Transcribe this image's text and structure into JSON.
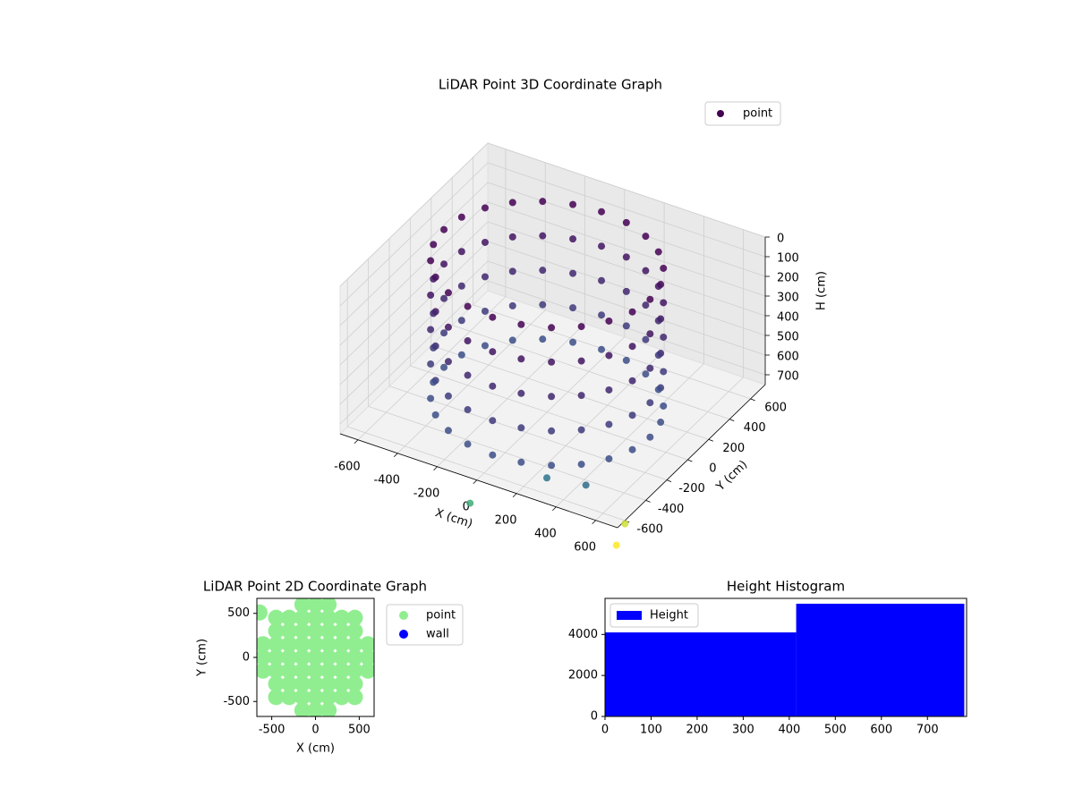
{
  "chart_data": [
    {
      "type": "scatter3d",
      "title": "LiDAR Point 3D Coordinate Graph",
      "xlabel": "X (cm)",
      "ylabel": "Y (cm)",
      "zlabel": "H (cm)",
      "series": [
        {
          "name": "point",
          "colormap": "viridis",
          "x": [
            520,
            502,
            450,
            368,
            260,
            135,
            0,
            -135,
            -260,
            -368,
            -450,
            -502,
            -520,
            -502,
            -450,
            -368,
            -260,
            -135,
            0,
            135,
            260,
            368,
            450,
            502,
            520,
            502,
            450,
            368,
            260,
            135,
            0,
            -135,
            -260,
            -368,
            -450,
            -502,
            -520,
            -502,
            -450,
            -368,
            -260,
            -135,
            0,
            135,
            260,
            368,
            450,
            502,
            520,
            502,
            450,
            368,
            260,
            135,
            0,
            -135,
            -260,
            -368,
            -450,
            -502,
            -520,
            -502,
            -450,
            -368,
            -260,
            -135,
            0,
            135,
            260,
            368,
            450,
            502,
            520,
            502,
            450,
            368,
            260,
            135,
            0,
            -135,
            -260,
            -368,
            -450,
            -502,
            -520,
            -502,
            -450,
            -368,
            -260,
            -135,
            0,
            135,
            260,
            368,
            450,
            502,
            520,
            502,
            450,
            368,
            260,
            135,
            0,
            -135,
            -260,
            -368,
            -450,
            -502,
            -520,
            -502,
            -450,
            -368,
            -260,
            -135,
            0,
            135,
            260,
            368,
            450,
            502,
            450,
            200,
            700,
            -50,
            720
          ],
          "y": [
            0,
            135,
            260,
            368,
            450,
            502,
            520,
            502,
            450,
            368,
            260,
            135,
            0,
            -135,
            -260,
            -368,
            -450,
            -502,
            -520,
            -502,
            -450,
            -368,
            -260,
            -135,
            0,
            135,
            260,
            368,
            450,
            502,
            520,
            502,
            450,
            368,
            260,
            135,
            0,
            -135,
            -260,
            -368,
            -450,
            -502,
            -520,
            -502,
            -450,
            -368,
            -260,
            -135,
            0,
            135,
            260,
            368,
            450,
            502,
            520,
            502,
            450,
            368,
            260,
            135,
            0,
            -135,
            -260,
            -368,
            -450,
            -502,
            -520,
            -502,
            -450,
            -368,
            -260,
            -135,
            0,
            135,
            260,
            368,
            450,
            502,
            520,
            502,
            450,
            368,
            260,
            135,
            0,
            -135,
            -260,
            -368,
            -450,
            -502,
            -520,
            -502,
            -450,
            -368,
            -260,
            -135,
            0,
            135,
            260,
            368,
            450,
            502,
            520,
            502,
            450,
            368,
            260,
            135,
            0,
            -135,
            -260,
            -368,
            -450,
            -502,
            -520,
            -502,
            -450,
            -368,
            -260,
            -135,
            -480,
            -380,
            -580,
            -640,
            -700
          ],
          "z": [
            0,
            0,
            0,
            0,
            0,
            0,
            0,
            0,
            0,
            0,
            0,
            0,
            0,
            0,
            0,
            0,
            0,
            0,
            0,
            0,
            0,
            0,
            0,
            0,
            175,
            175,
            175,
            175,
            175,
            175,
            175,
            175,
            175,
            175,
            175,
            175,
            175,
            175,
            175,
            175,
            175,
            175,
            175,
            175,
            175,
            175,
            175,
            175,
            350,
            350,
            350,
            350,
            350,
            350,
            350,
            350,
            350,
            350,
            350,
            350,
            350,
            350,
            350,
            350,
            350,
            350,
            350,
            350,
            350,
            350,
            350,
            350,
            525,
            525,
            525,
            525,
            525,
            525,
            525,
            525,
            525,
            525,
            525,
            525,
            525,
            525,
            525,
            525,
            525,
            525,
            525,
            525,
            525,
            525,
            525,
            525,
            700,
            700,
            700,
            700,
            700,
            700,
            700,
            700,
            700,
            700,
            700,
            700,
            700,
            700,
            700,
            700,
            700,
            700,
            700,
            700,
            700,
            700,
            700,
            700,
            720,
            820,
            780,
            900,
            820
          ]
        }
      ],
      "xlim": [
        -690,
        710
      ],
      "ylim": [
        -670,
        740
      ],
      "zlim": [
        750,
        0
      ],
      "xticks": [
        -600,
        -400,
        -200,
        0,
        200,
        400,
        600
      ],
      "yticks": [
        -600,
        -400,
        -200,
        0,
        200,
        400,
        600
      ],
      "zticks": [
        0,
        100,
        200,
        300,
        400,
        500,
        600,
        700
      ],
      "grid": true,
      "legend": "upper right"
    },
    {
      "type": "scatter",
      "title": "LiDAR Point 2D Coordinate Graph",
      "xlabel": "X (cm)",
      "ylabel": "Y (cm)",
      "series": [
        {
          "name": "point",
          "color": "#90ee90",
          "x": [
            -600,
            -600,
            -600,
            -450,
            -450,
            -450,
            -450,
            -450,
            -450,
            -450,
            -300,
            -300,
            -300,
            -300,
            -300,
            -300,
            -300,
            -150,
            -150,
            -150,
            -150,
            -150,
            -150,
            -150,
            -150,
            -150,
            0,
            0,
            0,
            0,
            0,
            0,
            0,
            0,
            0,
            150,
            150,
            150,
            150,
            150,
            150,
            150,
            150,
            150,
            300,
            300,
            300,
            300,
            300,
            300,
            300,
            450,
            450,
            450,
            450,
            450,
            450,
            450,
            600,
            600,
            600,
            -640
          ],
          "y": [
            -150,
            0,
            150,
            -450,
            -300,
            -150,
            0,
            150,
            300,
            450,
            -450,
            -300,
            -150,
            0,
            150,
            300,
            450,
            -600,
            -450,
            -300,
            -150,
            0,
            150,
            300,
            450,
            600,
            -600,
            -450,
            -300,
            -150,
            0,
            150,
            300,
            450,
            600,
            -600,
            -450,
            -300,
            -150,
            0,
            150,
            300,
            450,
            600,
            -450,
            -300,
            -150,
            0,
            150,
            300,
            450,
            -450,
            -300,
            -150,
            0,
            150,
            300,
            450,
            -150,
            0,
            150,
            510
          ]
        },
        {
          "name": "wall",
          "color": "#0000ff",
          "x": [],
          "y": []
        }
      ],
      "xlim": [
        -670,
        670
      ],
      "ylim": [
        -670,
        670
      ],
      "xticks": [
        -500,
        0,
        500
      ],
      "yticks": [
        -500,
        0,
        500
      ],
      "legend": "outside upper right"
    },
    {
      "type": "histogram",
      "title": "Height Histogram",
      "series": [
        {
          "name": "Height",
          "color": "#0000ff",
          "bins": [
            0,
            415,
            780
          ],
          "counts": [
            4100,
            5500
          ]
        }
      ],
      "xlim": [
        0,
        785
      ],
      "ylim": [
        0,
        5760
      ],
      "xticks": [
        0,
        100,
        200,
        300,
        400,
        500,
        600,
        700
      ],
      "yticks": [
        0,
        2000,
        4000
      ],
      "legend": "upper left"
    }
  ]
}
